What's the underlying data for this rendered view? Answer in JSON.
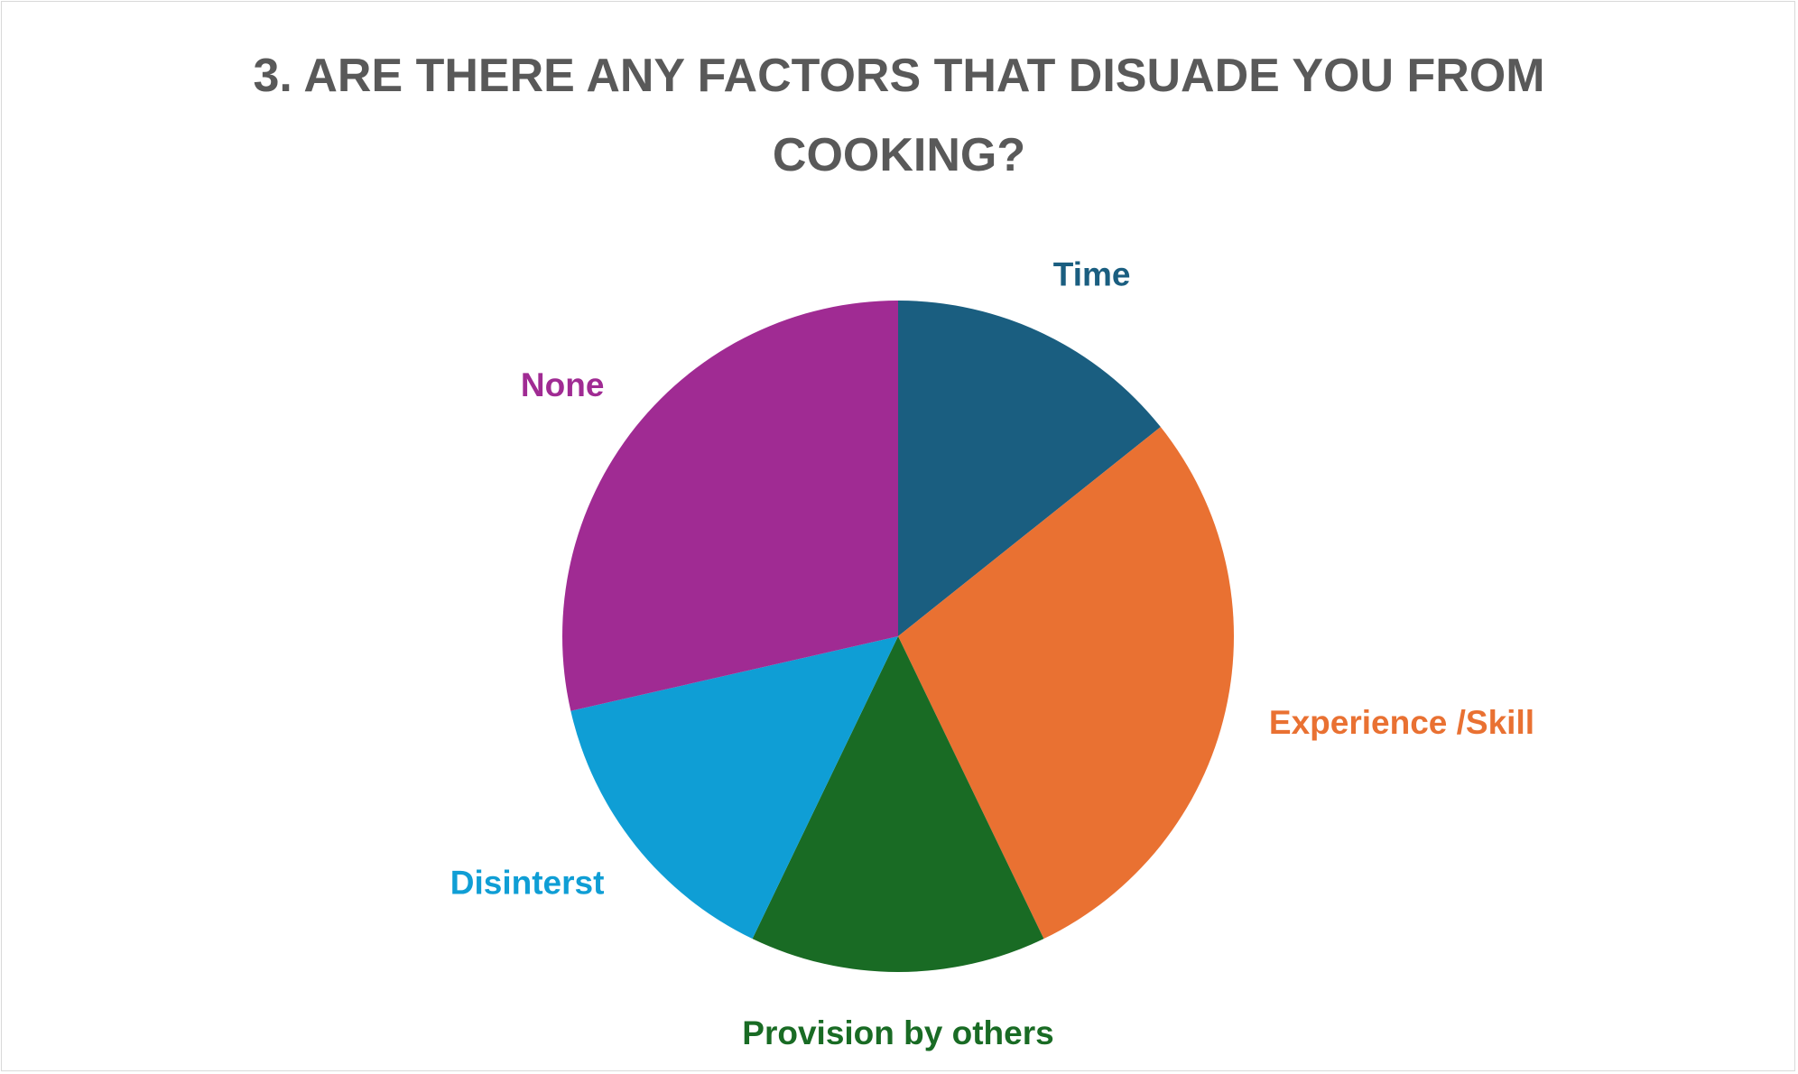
{
  "chart_data": {
    "type": "pie",
    "title": "3. ARE THERE ANY FACTORS THAT DISUADE YOU FROM COOKING?",
    "categories": [
      "Time",
      "Experience /Skill",
      "Provision by others",
      "Disinterst",
      "None"
    ],
    "values": [
      1,
      2,
      1,
      1,
      2
    ],
    "colors": [
      "#1a5e80",
      "#e97132",
      "#196b24",
      "#0f9ed5",
      "#a02b93"
    ]
  }
}
